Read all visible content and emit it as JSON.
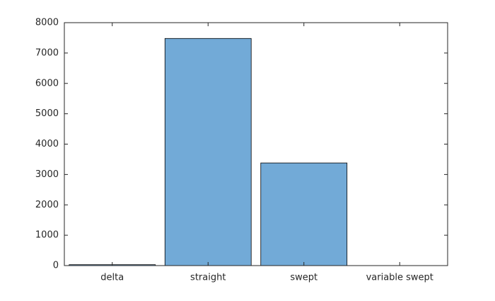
{
  "chart_data": {
    "type": "bar",
    "categories": [
      "delta",
      "straight",
      "swept",
      "variable swept"
    ],
    "values": [
      30,
      7480,
      3380,
      0
    ],
    "color": "#72aad7",
    "ylim": [
      0,
      8000
    ],
    "yticks": [
      0,
      1000,
      2000,
      3000,
      4000,
      5000,
      6000,
      7000,
      8000
    ],
    "grid": false
  }
}
